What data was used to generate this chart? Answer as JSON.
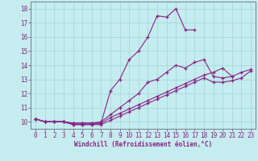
{
  "xlabel": "Windchill (Refroidissement éolien,°C)",
  "xlim": [
    -0.5,
    23.5
  ],
  "ylim": [
    9.5,
    18.5
  ],
  "xticks": [
    0,
    1,
    2,
    3,
    4,
    5,
    6,
    7,
    8,
    9,
    10,
    11,
    12,
    13,
    14,
    15,
    16,
    17,
    18,
    19,
    20,
    21,
    22,
    23
  ],
  "yticks": [
    10,
    11,
    12,
    13,
    14,
    15,
    16,
    17,
    18
  ],
  "bg_color": "#c5ecee",
  "line_color": "#882288",
  "grid_color": "#a8d8dc",
  "lines": [
    {
      "x": [
        0,
        1,
        2,
        3,
        4,
        5,
        6,
        7,
        8,
        9,
        10,
        11,
        12,
        13,
        14,
        15,
        16,
        17
      ],
      "y": [
        10.2,
        10.0,
        10.0,
        10.0,
        9.8,
        9.8,
        9.8,
        9.9,
        12.2,
        13.0,
        14.4,
        15.0,
        16.0,
        17.5,
        17.4,
        18.0,
        16.5,
        16.5
      ]
    },
    {
      "x": [
        0,
        1,
        2,
        3,
        4,
        5,
        6,
        7,
        8,
        9,
        10,
        11,
        12,
        13,
        14,
        15,
        16,
        17,
        18,
        19,
        20,
        21
      ],
      "y": [
        10.2,
        10.0,
        10.0,
        10.0,
        9.9,
        9.9,
        9.9,
        10.0,
        10.5,
        11.0,
        11.5,
        12.0,
        12.8,
        13.0,
        13.5,
        14.0,
        13.8,
        14.2,
        14.4,
        13.2,
        13.1,
        13.2
      ]
    },
    {
      "x": [
        0,
        1,
        2,
        3,
        4,
        5,
        6,
        7,
        8,
        9,
        10,
        11,
        12,
        13,
        14,
        15,
        16,
        17,
        18,
        19,
        20,
        21,
        22,
        23
      ],
      "y": [
        10.2,
        10.0,
        10.0,
        10.0,
        9.9,
        9.9,
        9.9,
        9.9,
        10.3,
        10.6,
        10.9,
        11.2,
        11.5,
        11.8,
        12.1,
        12.4,
        12.7,
        13.0,
        13.3,
        13.5,
        13.8,
        13.2,
        13.5,
        13.7
      ]
    },
    {
      "x": [
        0,
        1,
        2,
        3,
        4,
        5,
        6,
        7,
        8,
        9,
        10,
        11,
        12,
        13,
        14,
        15,
        16,
        17,
        18,
        19,
        20,
        21,
        22,
        23
      ],
      "y": [
        10.2,
        10.0,
        10.0,
        10.0,
        9.8,
        9.8,
        9.8,
        9.8,
        10.1,
        10.4,
        10.7,
        11.0,
        11.3,
        11.6,
        11.9,
        12.2,
        12.5,
        12.8,
        13.1,
        12.8,
        12.8,
        12.9,
        13.1,
        13.6
      ]
    }
  ]
}
